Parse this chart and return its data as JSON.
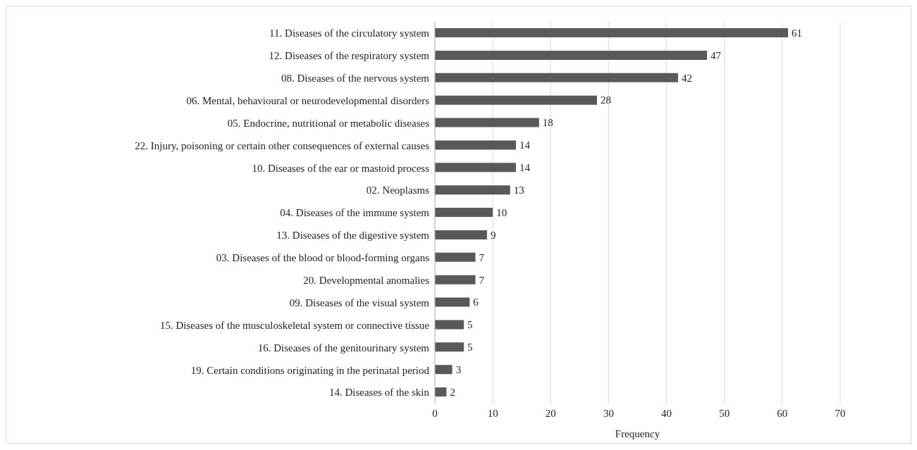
{
  "chart_data": {
    "type": "bar",
    "orientation": "horizontal",
    "xlabel": "Frequency",
    "categories": [
      "11. Diseases of the circulatory system",
      "12. Diseases of the respiratory system",
      "08. Diseases of the nervous system",
      "06. Mental, behavioural or neurodevelopmental disorders",
      "05. Endocrine, nutritional or metabolic diseases",
      "22. Injury,  poisoning or certain other consequences of external causes",
      "10. Diseases of the ear or mastoid process",
      "02. Neoplasms",
      "04. Diseases of the immune system",
      "13. Diseases of the digestive system",
      "03. Diseases of the blood or blood-forming organs",
      "20. Developmental anomalies",
      "09. Diseases of the visual system",
      "15. Diseases of the musculoskeletal system or connective tissue",
      "16. Diseases of the genitourinary system",
      "19. Certain conditions originating in the perinatal period",
      "14. Diseases of the skin"
    ],
    "values": [
      61,
      47,
      42,
      28,
      18,
      14,
      14,
      13,
      10,
      9,
      7,
      7,
      6,
      5,
      5,
      3,
      2
    ],
    "color": "#595959",
    "xlim": [
      0,
      70
    ],
    "xticks": [
      0,
      10,
      20,
      30,
      40,
      50,
      60,
      70
    ],
    "grid": "x",
    "data_labels": true
  }
}
